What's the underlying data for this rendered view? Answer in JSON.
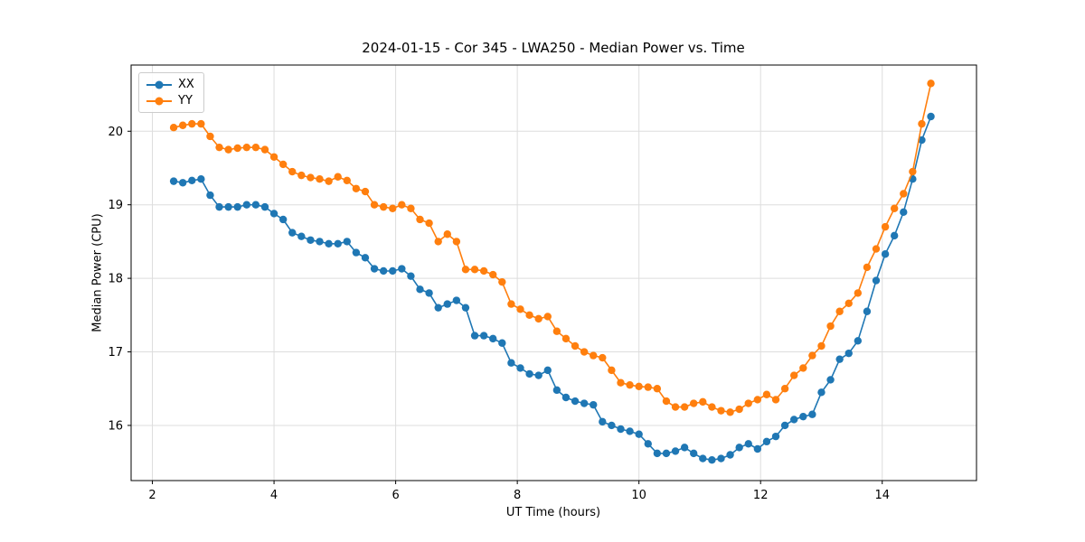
{
  "chart_data": {
    "type": "line",
    "title": "2024-01-15 - Cor 345 - LWA250 - Median Power vs. Time",
    "xlabel": "UT Time (hours)",
    "ylabel": "Median Power (CPU)",
    "xlim": [
      1.65,
      15.55
    ],
    "ylim": [
      15.25,
      20.9
    ],
    "xticks": [
      2,
      4,
      6,
      8,
      10,
      12,
      14
    ],
    "yticks": [
      16,
      17,
      18,
      19,
      20
    ],
    "grid": true,
    "legend_position": "upper-left",
    "x": [
      2.35,
      2.5,
      2.65,
      2.8,
      2.95,
      3.1,
      3.25,
      3.4,
      3.55,
      3.7,
      3.85,
      4.0,
      4.15,
      4.3,
      4.45,
      4.6,
      4.75,
      4.9,
      5.05,
      5.2,
      5.35,
      5.5,
      5.65,
      5.8,
      5.95,
      6.1,
      6.25,
      6.4,
      6.55,
      6.7,
      6.85,
      7.0,
      7.15,
      7.3,
      7.45,
      7.6,
      7.75,
      7.9,
      8.05,
      8.2,
      8.35,
      8.5,
      8.65,
      8.8,
      8.95,
      9.1,
      9.25,
      9.4,
      9.55,
      9.7,
      9.85,
      10.0,
      10.15,
      10.3,
      10.45,
      10.6,
      10.75,
      10.9,
      11.05,
      11.2,
      11.35,
      11.5,
      11.65,
      11.8,
      11.95,
      12.1,
      12.25,
      12.4,
      12.55,
      12.7,
      12.85,
      13.0,
      13.15,
      13.3,
      13.45,
      13.6,
      13.75,
      13.9,
      14.05,
      14.2,
      14.35,
      14.5,
      14.65,
      14.8
    ],
    "series": [
      {
        "name": "XX",
        "color": "#1f77b4",
        "values": [
          19.32,
          19.3,
          19.33,
          19.35,
          19.13,
          18.97,
          18.97,
          18.97,
          19.0,
          19.0,
          18.97,
          18.88,
          18.8,
          18.62,
          18.57,
          18.52,
          18.5,
          18.47,
          18.47,
          18.5,
          18.35,
          18.28,
          18.13,
          18.1,
          18.1,
          18.13,
          18.03,
          17.85,
          17.8,
          17.6,
          17.65,
          17.7,
          17.6,
          17.22,
          17.22,
          17.18,
          17.12,
          16.85,
          16.78,
          16.7,
          16.68,
          16.75,
          16.48,
          16.38,
          16.33,
          16.3,
          16.28,
          16.05,
          16.0,
          15.95,
          15.92,
          15.88,
          15.75,
          15.62,
          15.62,
          15.65,
          15.7,
          15.62,
          15.55,
          15.53,
          15.55,
          15.6,
          15.7,
          15.75,
          15.68,
          15.78,
          15.85,
          16.0,
          16.08,
          16.12,
          16.15,
          16.45,
          16.62,
          16.9,
          16.98,
          17.15,
          17.55,
          17.97,
          18.33,
          18.58,
          18.9,
          19.35,
          19.88,
          20.2
        ]
      },
      {
        "name": "YY",
        "color": "#ff7f0e",
        "values": [
          20.05,
          20.08,
          20.1,
          20.1,
          19.93,
          19.78,
          19.75,
          19.77,
          19.78,
          19.78,
          19.75,
          19.65,
          19.55,
          19.45,
          19.4,
          19.37,
          19.35,
          19.32,
          19.38,
          19.33,
          19.22,
          19.18,
          19.0,
          18.97,
          18.95,
          19.0,
          18.95,
          18.8,
          18.75,
          18.5,
          18.6,
          18.5,
          18.12,
          18.12,
          18.1,
          18.05,
          17.95,
          17.65,
          17.58,
          17.5,
          17.45,
          17.48,
          17.28,
          17.18,
          17.08,
          17.0,
          16.95,
          16.92,
          16.75,
          16.58,
          16.55,
          16.53,
          16.52,
          16.5,
          16.33,
          16.25,
          16.25,
          16.3,
          16.32,
          16.25,
          16.2,
          16.18,
          16.22,
          16.3,
          16.35,
          16.42,
          16.35,
          16.5,
          16.68,
          16.78,
          16.95,
          17.08,
          17.35,
          17.55,
          17.66,
          17.8,
          18.15,
          18.4,
          18.7,
          18.95,
          19.15,
          19.45,
          20.1,
          20.65
        ]
      }
    ]
  }
}
